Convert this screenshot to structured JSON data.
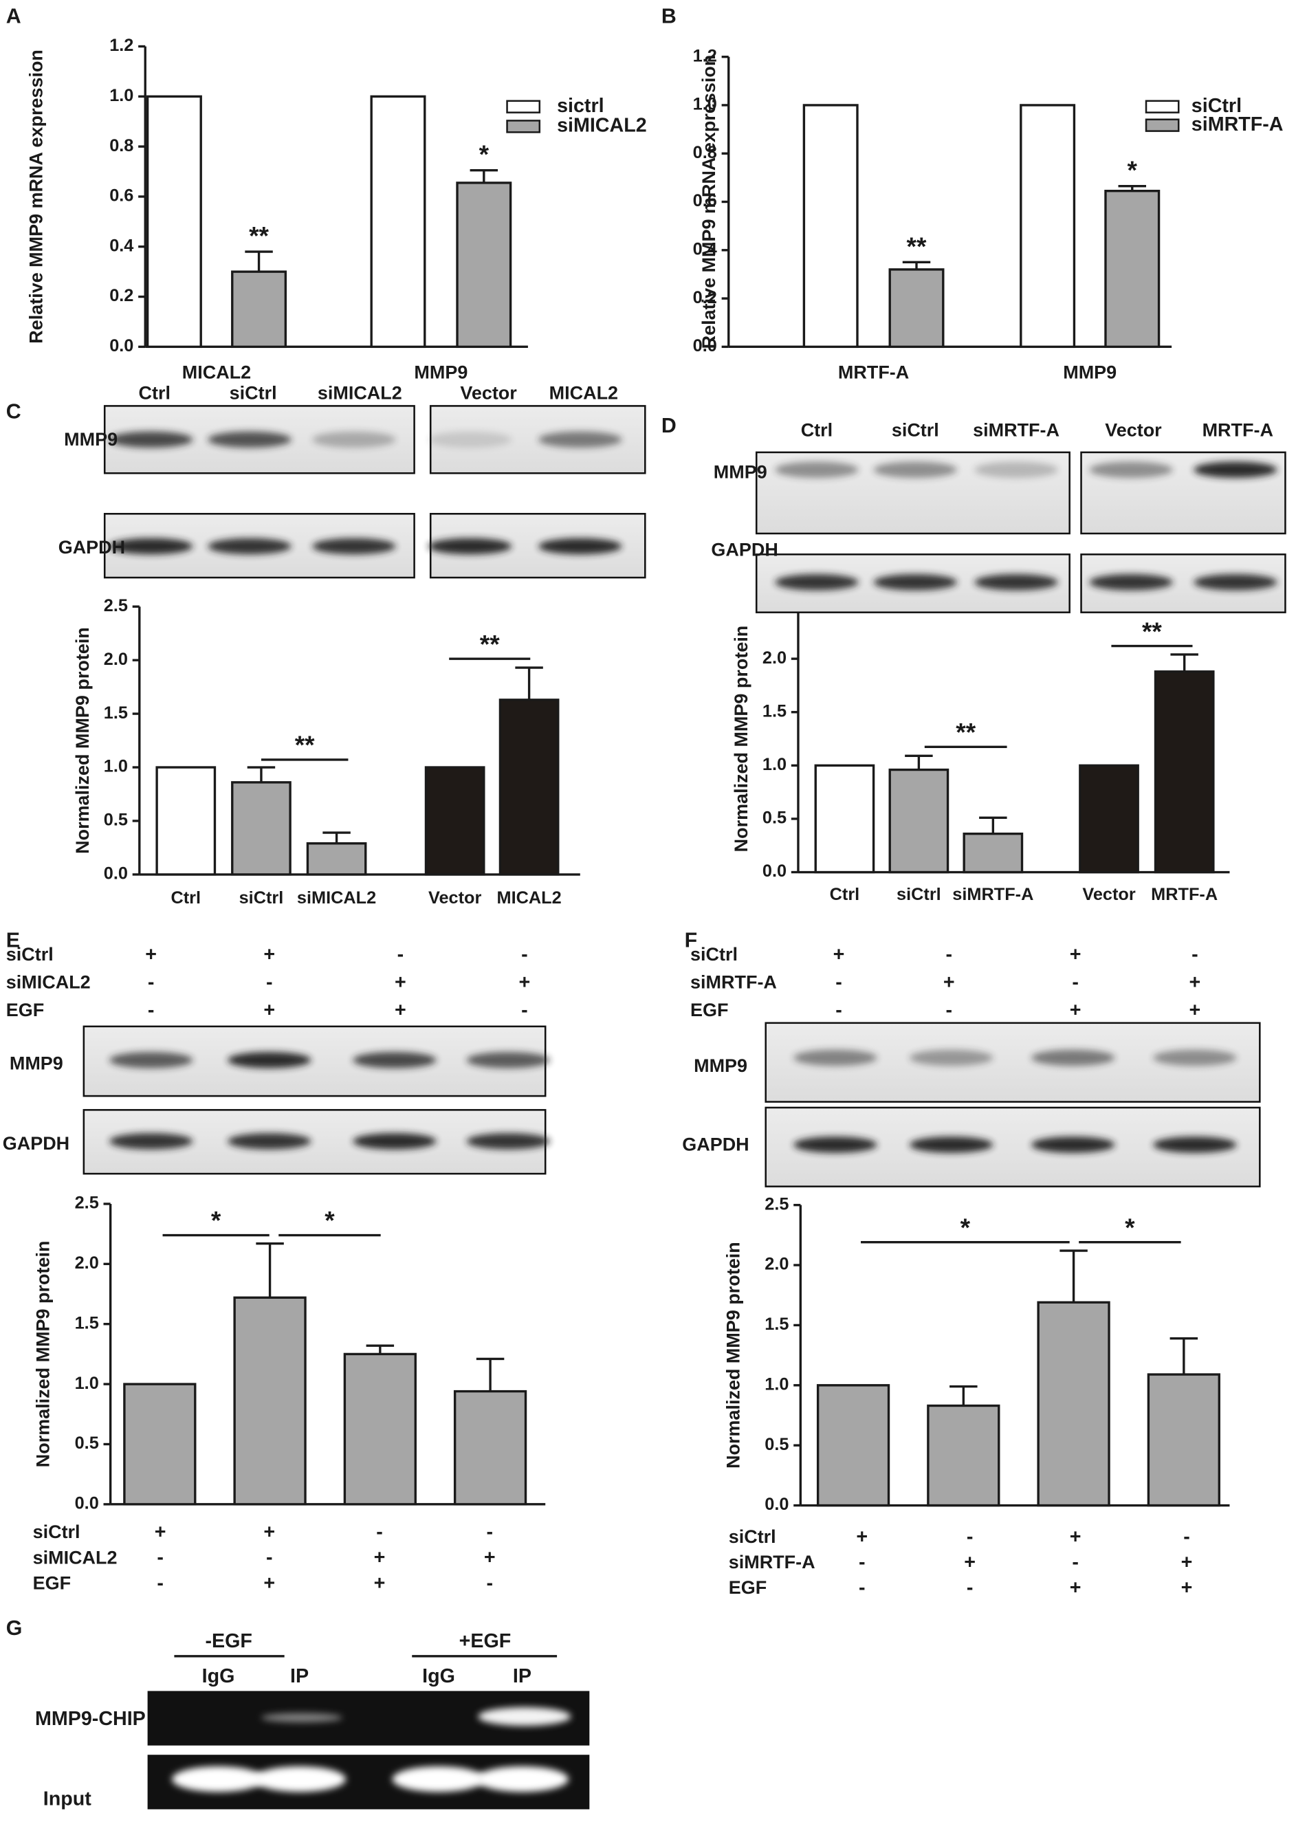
{
  "chart_data": [
    {
      "type": "bar",
      "label": "A",
      "y_label": "Relative MMP9 mRNA expression",
      "categories": [
        "MICAL2",
        "MMP9"
      ],
      "series": [
        {
          "name": "sictrl",
          "color": "#ffffff",
          "values": [
            1,
            1
          ]
        },
        {
          "name": "siMICAL2",
          "color": "#a6a6a6",
          "values": [
            0.3,
            0.655
          ],
          "errors": [
            0.08,
            0.05
          ]
        }
      ],
      "annotations": [
        "**",
        "*"
      ],
      "ylim": [
        0,
        1.2
      ],
      "yticks": [
        {
          "value": 0,
          "label": "0.0"
        },
        0.2,
        0.4,
        0.6,
        0.8,
        {
          "value": 1,
          "label": "1.0"
        },
        1.2
      ]
    },
    {
      "type": "bar",
      "label": "B",
      "y_label": "Relative MMP9 mRNA expression",
      "categories": [
        "MRTF-A",
        "MMP9"
      ],
      "series": [
        {
          "name": "siCtrl",
          "color": "#ffffff",
          "values": [
            1,
            1
          ]
        },
        {
          "name": "siMRTF-A",
          "color": "#a6a6a6",
          "values": [
            0.32,
            0.645
          ],
          "errors": [
            0.03,
            0.02
          ]
        }
      ],
      "annotations": [
        "**",
        "*"
      ],
      "ylim": [
        0,
        1.2
      ],
      "yticks": [
        {
          "value": 0,
          "label": "0.0"
        },
        0.2,
        0.4,
        0.6,
        0.8,
        {
          "value": 1,
          "label": "1.0"
        },
        1.2
      ]
    },
    {
      "type": "bar",
      "label": "C",
      "y_label": "Normalized MMP9 protein",
      "blot": {
        "lanes": [
          "Ctrl",
          "siCtrl",
          "siMICAL2",
          "Vector",
          "MICAL2"
        ],
        "rows": [
          "MMP9",
          "GAPDH"
        ]
      },
      "categories": [
        "Ctrl",
        "siCtrl",
        "siMICAL2",
        "Vector",
        "MICAL2"
      ],
      "values": [
        1,
        0.86,
        0.29,
        1,
        1.63
      ],
      "errors": [
        null,
        0.14,
        0.1,
        null,
        0.3
      ],
      "colors": [
        "#ffffff",
        "#a6a6a6",
        "#a6a6a6",
        "#1f1a17",
        "#1f1a17"
      ],
      "annotations": [
        "**",
        "**"
      ],
      "ylim": [
        0,
        2.5
      ],
      "yticks": [
        {
          "value": 0,
          "label": "0.0"
        },
        0.5,
        {
          "value": 1,
          "label": "1.0"
        },
        1.5,
        {
          "value": 2,
          "label": "2.0"
        },
        2.5
      ]
    },
    {
      "type": "bar",
      "label": "D",
      "y_label": "Normalized MMP9 protein",
      "blot": {
        "lanes": [
          "Ctrl",
          "siCtrl",
          "siMRTF-A",
          "Vector",
          "MRTF-A"
        ],
        "rows": [
          "MMP9",
          "GAPDH"
        ]
      },
      "categories": [
        "Ctrl",
        "siCtrl",
        "siMRTF-A",
        "Vector",
        "MRTF-A"
      ],
      "values": [
        1,
        0.96,
        0.36,
        1,
        1.88
      ],
      "errors": [
        null,
        0.13,
        0.15,
        null,
        0.16
      ],
      "colors": [
        "#ffffff",
        "#a6a6a6",
        "#a6a6a6",
        "#1f1a17",
        "#1f1a17"
      ],
      "annotations": [
        "**",
        "**"
      ],
      "ylim": [
        0,
        2.5
      ],
      "yticks": [
        {
          "value": 0,
          "label": "0.0"
        },
        0.5,
        {
          "value": 1,
          "label": "1.0"
        },
        1.5,
        {
          "value": 2,
          "label": "2.0"
        },
        2.5
      ]
    },
    {
      "type": "bar",
      "label": "E",
      "y_label": "Normalized MMP9 protein",
      "blot": {
        "rows": [
          "MMP9",
          "GAPDH"
        ]
      },
      "conditions": [
        {
          "name": "siCtrl",
          "signs": [
            "+",
            "+",
            "-",
            "-"
          ]
        },
        {
          "name": "siMICAL2",
          "signs": [
            "-",
            "-",
            "+",
            "+"
          ]
        },
        {
          "name": "EGF",
          "signs": [
            "-",
            "+",
            "+",
            "-"
          ]
        }
      ],
      "values": [
        1,
        1.72,
        1.25,
        0.94
      ],
      "errors": [
        null,
        0.45,
        0.07,
        0.27
      ],
      "color": "#a6a6a6",
      "annotations": [
        "*",
        "*"
      ],
      "ylim": [
        0,
        2.5
      ],
      "yticks": [
        {
          "value": 0,
          "label": "0.0"
        },
        0.5,
        {
          "value": 1,
          "label": "1.0"
        },
        1.5,
        {
          "value": 2,
          "label": "2.0"
        },
        2.5
      ]
    },
    {
      "type": "bar",
      "label": "F",
      "y_label": "Normalized MMP9 protein",
      "blot": {
        "rows": [
          "MMP9",
          "GAPDH"
        ]
      },
      "conditions": [
        {
          "name": "siCtrl",
          "signs": [
            "+",
            "-",
            "+",
            "-"
          ]
        },
        {
          "name": "siMRTF-A",
          "signs": [
            "-",
            "+",
            "-",
            "+"
          ]
        },
        {
          "name": "EGF",
          "signs": [
            "-",
            "-",
            "+",
            "+"
          ]
        }
      ],
      "values": [
        1,
        0.83,
        1.69,
        1.09
      ],
      "errors": [
        null,
        0.16,
        0.43,
        0.3
      ],
      "color": "#a6a6a6",
      "annotations": [
        "*",
        "*"
      ],
      "ylim": [
        0,
        2.5
      ],
      "yticks": [
        {
          "value": 0,
          "label": "0.0"
        },
        0.5,
        {
          "value": 1,
          "label": "1.0"
        },
        1.5,
        {
          "value": 2,
          "label": "2.0"
        },
        2.5
      ]
    }
  ],
  "panel_g": {
    "label": "G",
    "groups": [
      "-EGF",
      "+EGF"
    ],
    "lanes": [
      "IgG",
      "IP",
      "IgG",
      "IP"
    ],
    "rows": [
      "MMP9-CHIP",
      "Input"
    ]
  }
}
